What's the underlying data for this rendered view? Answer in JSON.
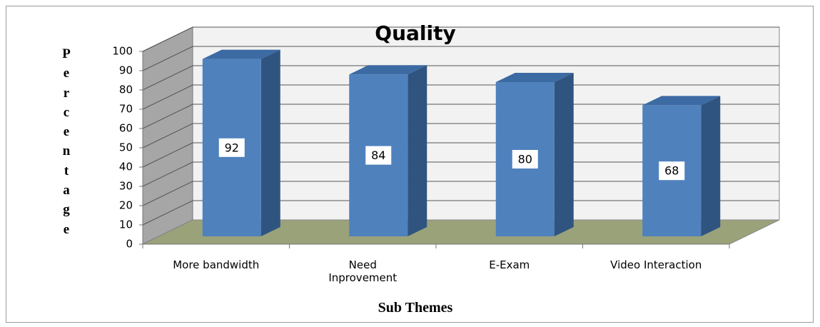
{
  "chart_data": {
    "type": "bar3d",
    "title": "Quality",
    "x_label": "Sub Themes",
    "y_label": "Percentage",
    "categories": [
      "More bandwidth",
      "Need\nInprovement",
      "E-Exam",
      "Video Interaction"
    ],
    "values": [
      92,
      84,
      80,
      68
    ],
    "color": "#4f81bd",
    "side_color": "#2f5480",
    "top_color": "#3c6aa3",
    "ylim": [
      0,
      100
    ],
    "yticks": [
      0,
      10,
      20,
      30,
      40,
      50,
      60,
      70,
      80,
      90,
      100
    ],
    "grid": true
  }
}
